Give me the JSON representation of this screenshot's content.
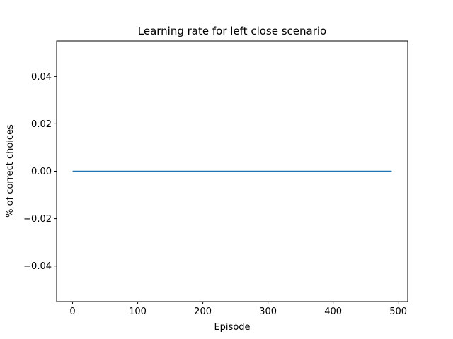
{
  "chart_data": {
    "type": "line",
    "title": "Learning rate for left close scenario",
    "xlabel": "Episode",
    "ylabel": "% of correct choices",
    "xlim": [
      -24.5,
      514.5
    ],
    "ylim": [
      -0.055,
      0.055
    ],
    "x_ticks": [
      0,
      100,
      200,
      300,
      400,
      500
    ],
    "x_tick_labels": [
      "0",
      "100",
      "200",
      "300",
      "400",
      "500"
    ],
    "y_ticks": [
      -0.04,
      -0.02,
      0.0,
      0.02,
      0.04
    ],
    "y_tick_labels": [
      "−0.04",
      "−0.02",
      "0.00",
      "0.02",
      "0.04"
    ],
    "grid": false,
    "legend": "none",
    "series": [
      {
        "color": "#1f77b4",
        "x": [
          0,
          490
        ],
        "y": [
          0,
          0
        ]
      }
    ]
  }
}
